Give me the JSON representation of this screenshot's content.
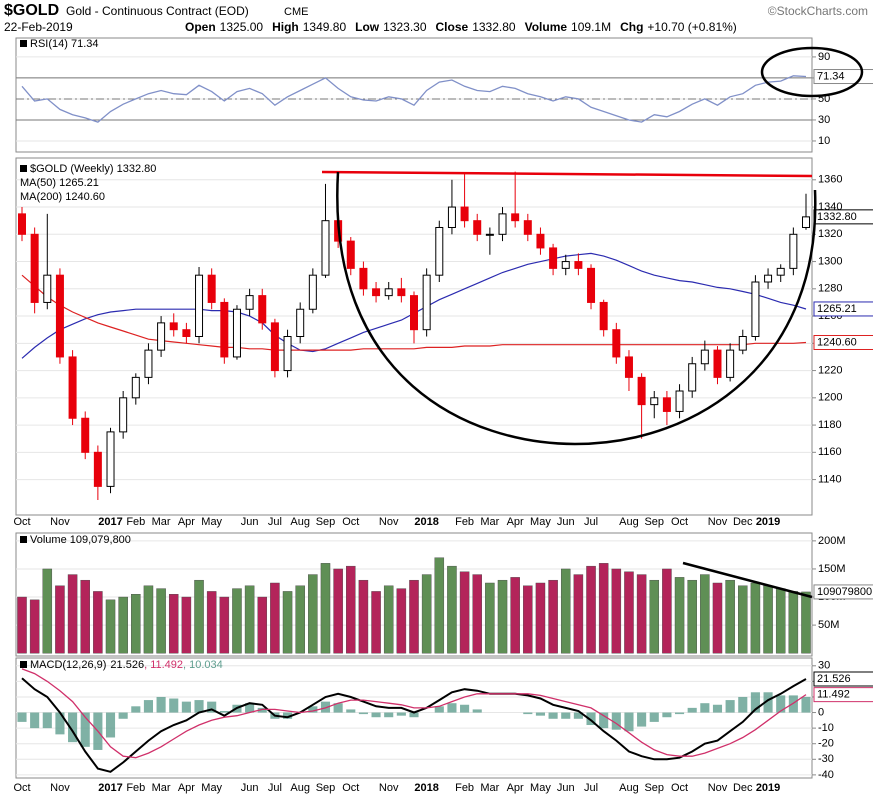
{
  "chart_data": {
    "type": "candlestick",
    "title": "$GOLD",
    "subtitle": "Gold - Continuous Contract (EOD)",
    "exchange": "CME",
    "source": "©StockCharts.com",
    "date": "22-Feb-2019",
    "quote": [
      {
        "label": "Open",
        "value": "1325.00"
      },
      {
        "label": "High",
        "value": "1349.80"
      },
      {
        "label": "Low",
        "value": "1323.30"
      },
      {
        "label": "Close",
        "value": "1332.80"
      },
      {
        "label": "Volume",
        "value": "109.1M"
      },
      {
        "label": "Chg",
        "value": "+10.70 (+0.81%)"
      }
    ],
    "legend": "$GOLD (Weekly) 1332.80",
    "categories": [
      "Oct",
      null,
      null,
      "Nov",
      null,
      null,
      null,
      "2017",
      null,
      "Feb",
      null,
      "Mar",
      null,
      "Apr",
      null,
      "May",
      null,
      null,
      "Jun",
      null,
      "Jul",
      null,
      "Aug",
      null,
      "Sep",
      null,
      "Oct",
      null,
      null,
      "Nov",
      null,
      null,
      "2018",
      null,
      null,
      "Feb",
      null,
      "Mar",
      null,
      "Apr",
      null,
      "May",
      null,
      "Jun",
      null,
      "Jul",
      null,
      null,
      "Aug",
      null,
      "Sep",
      null,
      "Oct",
      null,
      null,
      "Nov",
      null,
      "Dec",
      null,
      "2019",
      null,
      null,
      null
    ],
    "open": [
      1335,
      1320,
      1270,
      1290,
      1230,
      1185,
      1160,
      1135,
      1175,
      1200,
      1215,
      1235,
      1255,
      1250,
      1245,
      1290,
      1270,
      1230,
      1265,
      1275,
      1255,
      1220,
      1245,
      1265,
      1290,
      1330,
      1315,
      1295,
      1280,
      1275,
      1280,
      1275,
      1250,
      1290,
      1325,
      1340,
      1330,
      1320,
      1320,
      1335,
      1330,
      1320,
      1310,
      1295,
      1300,
      1295,
      1270,
      1250,
      1230,
      1215,
      1195,
      1200,
      1190,
      1205,
      1225,
      1235,
      1215,
      1235,
      1245,
      1285,
      1290,
      1295,
      1325
    ],
    "high": [
      1340,
      1325,
      1335,
      1295,
      1235,
      1190,
      1165,
      1178,
      1205,
      1218,
      1240,
      1260,
      1262,
      1255,
      1296,
      1295,
      1273,
      1268,
      1280,
      1280,
      1258,
      1250,
      1270,
      1295,
      1357,
      1335,
      1318,
      1300,
      1285,
      1285,
      1288,
      1278,
      1295,
      1330,
      1360,
      1365,
      1335,
      1325,
      1340,
      1366,
      1335,
      1325,
      1313,
      1305,
      1306,
      1298,
      1272,
      1255,
      1235,
      1218,
      1205,
      1205,
      1210,
      1230,
      1242,
      1238,
      1240,
      1250,
      1290,
      1295,
      1298,
      1325,
      1349.8
    ],
    "low": [
      1315,
      1262,
      1265,
      1225,
      1180,
      1155,
      1125,
      1130,
      1170,
      1195,
      1210,
      1230,
      1245,
      1240,
      1240,
      1265,
      1225,
      1228,
      1260,
      1250,
      1215,
      1215,
      1240,
      1262,
      1288,
      1310,
      1290,
      1275,
      1270,
      1272,
      1270,
      1240,
      1245,
      1285,
      1320,
      1325,
      1315,
      1305,
      1315,
      1325,
      1315,
      1305,
      1290,
      1290,
      1290,
      1265,
      1245,
      1225,
      1205,
      1170,
      1185,
      1180,
      1185,
      1200,
      1220,
      1210,
      1212,
      1232,
      1242,
      1280,
      1285,
      1290,
      1323.3
    ],
    "close": [
      1320,
      1270,
      1290,
      1230,
      1185,
      1160,
      1135,
      1175,
      1200,
      1215,
      1235,
      1255,
      1250,
      1245,
      1290,
      1270,
      1230,
      1265,
      1275,
      1255,
      1220,
      1245,
      1265,
      1290,
      1330,
      1315,
      1295,
      1280,
      1275,
      1280,
      1275,
      1250,
      1290,
      1325,
      1340,
      1330,
      1320,
      1320,
      1335,
      1330,
      1320,
      1310,
      1295,
      1300,
      1295,
      1270,
      1250,
      1230,
      1215,
      1195,
      1200,
      1190,
      1205,
      1225,
      1235,
      1215,
      1235,
      1245,
      1285,
      1290,
      1295,
      1320,
      1332.8
    ],
    "up_color": "#ffffff",
    "down_color": "#e8000b",
    "ylim": [
      1114,
      1376
    ],
    "yticks": [
      1140,
      1160,
      1180,
      1200,
      1220,
      1240,
      1260,
      1280,
      1300,
      1320,
      1340,
      1360
    ],
    "grid": true,
    "last_label": {
      "value": 1332.8,
      "label": "1332.80"
    },
    "series": [
      {
        "name": "MA(50) 1265.21",
        "color": "#2b2bb0",
        "values": [
          1229,
          1237,
          1244,
          1250,
          1254,
          1258,
          1261,
          1263,
          1264,
          1265,
          1265,
          1265,
          1265,
          1265,
          1265,
          1264,
          1264,
          1263,
          1260,
          1255,
          1246,
          1240,
          1235,
          1234,
          1236,
          1240,
          1244,
          1248,
          1251,
          1254,
          1257,
          1262,
          1267,
          1272,
          1276,
          1280,
          1284,
          1288,
          1292,
          1295,
          1298,
          1300,
          1302,
          1304,
          1305,
          1306,
          1304,
          1301,
          1297,
          1293,
          1290,
          1288,
          1286,
          1285,
          1283,
          1281,
          1280,
          1278,
          1276,
          1273,
          1270,
          1268,
          1265.21
        ],
        "last_label": {
          "value": 1265.21,
          "label": "1265.21"
        }
      },
      {
        "name": "MA(200) 1240.60",
        "color": "#dd2222",
        "values": [
          1290,
          1282,
          1274,
          1268,
          1263,
          1259,
          1255,
          1252,
          1249,
          1246,
          1243,
          1242,
          1241,
          1240,
          1239,
          1238,
          1237,
          1237,
          1236,
          1236,
          1235,
          1235,
          1235,
          1235,
          1235,
          1235,
          1235,
          1236,
          1236,
          1236,
          1236,
          1236,
          1237,
          1237,
          1237,
          1238,
          1238,
          1238,
          1239,
          1239,
          1239,
          1239,
          1239,
          1239,
          1239,
          1239,
          1239,
          1239,
          1239,
          1239,
          1239,
          1239,
          1239,
          1239,
          1239,
          1239,
          1239,
          1239,
          1240,
          1240,
          1240,
          1240,
          1240.6
        ],
        "last_label": {
          "value": 1240.6,
          "label": "1240.60"
        }
      }
    ],
    "rsi": {
      "type": "line",
      "name": "RSI(14) 71.34",
      "color": "#8090c8",
      "values": [
        62,
        48,
        50,
        40,
        35,
        32,
        28,
        38,
        45,
        50,
        55,
        58,
        55,
        54,
        63,
        57,
        48,
        57,
        60,
        55,
        44,
        52,
        58,
        64,
        70,
        60,
        52,
        49,
        48,
        52,
        50,
        44,
        58,
        66,
        68,
        62,
        58,
        57,
        62,
        60,
        55,
        52,
        48,
        52,
        50,
        42,
        38,
        34,
        30,
        28,
        35,
        33,
        38,
        45,
        50,
        44,
        52,
        55,
        63,
        66,
        67,
        72,
        71.34
      ],
      "ylim": [
        -0.5,
        108
      ],
      "yticks": [
        10,
        30,
        50,
        70,
        90
      ],
      "grid": true,
      "bands": [
        30,
        70
      ],
      "midline": 50,
      "last_label": 71.34
    },
    "volume": {
      "type": "bar",
      "name": "Volume 109,079,800",
      "values": [
        100,
        95,
        150,
        120,
        140,
        130,
        110,
        95,
        100,
        105,
        120,
        115,
        105,
        100,
        130,
        110,
        100,
        115,
        120,
        100,
        125,
        110,
        120,
        140,
        160,
        150,
        155,
        130,
        110,
        120,
        115,
        130,
        140,
        170,
        155,
        145,
        140,
        125,
        130,
        135,
        120,
        125,
        130,
        150,
        140,
        155,
        160,
        150,
        145,
        140,
        130,
        150,
        135,
        130,
        140,
        125,
        130,
        120,
        125,
        120,
        115,
        110,
        109.0798
      ],
      "up_color": "#5f8f55",
      "down_color": "#b3245a",
      "ylim": [
        -5,
        214
      ],
      "grid": true,
      "yticks": [
        {
          "value": 50,
          "label": "50M"
        },
        {
          "value": 100,
          "label": "100M"
        },
        {
          "value": 150,
          "label": "150M"
        },
        {
          "value": 200,
          "label": "200M"
        }
      ],
      "last_label": {
        "value": 109.0798,
        "label": "109079800"
      }
    },
    "macd": {
      "type": "macd",
      "name": "MACD(12,26,9)",
      "ylim": [
        -42,
        35
      ],
      "yticks": [
        -40,
        -30,
        -20,
        -10,
        0,
        10,
        20,
        30
      ],
      "grid": true,
      "series": [
        {
          "name": "21.526",
          "color": "#000000",
          "kind": "line",
          "values": [
            22,
            15,
            10,
            0,
            -12,
            -25,
            -36,
            -38,
            -32,
            -25,
            -18,
            -12,
            -8,
            -5,
            0,
            2,
            -2,
            3,
            6,
            5,
            -2,
            -3,
            0,
            5,
            10,
            12,
            10,
            7,
            4,
            3,
            3,
            0,
            3,
            8,
            13,
            15,
            14,
            12,
            12,
            12,
            11,
            9,
            5,
            3,
            1,
            -5,
            -12,
            -18,
            -25,
            -28,
            -30,
            -30,
            -29,
            -25,
            -20,
            -18,
            -12,
            -6,
            2,
            8,
            12,
            17,
            21.526
          ],
          "last_label": 21.526
        },
        {
          "name": ", 11.492",
          "color": "#d0306a",
          "kind": "line",
          "values": [
            28,
            25,
            20,
            14,
            7,
            -3,
            -12,
            -22,
            -28,
            -29,
            -26,
            -22,
            -17,
            -12,
            -8,
            -5,
            -3,
            -2,
            0,
            2,
            2,
            1,
            0,
            1,
            3,
            6,
            8,
            8,
            7,
            6,
            5,
            3,
            3,
            4,
            7,
            10,
            12,
            12,
            12,
            12,
            12,
            11,
            9,
            7,
            5,
            3,
            -2,
            -7,
            -13,
            -19,
            -24,
            -27,
            -28,
            -28,
            -26,
            -23,
            -20,
            -16,
            -11,
            -5,
            1,
            6,
            11.492
          ],
          "last_label": 11.492
        },
        {
          "name": ", 10.034",
          "color": "#5f9e8f",
          "kind": "bar",
          "values": [
            -6,
            -10,
            -10,
            -14,
            -19,
            -22,
            -24,
            -16,
            -4,
            4,
            8,
            10,
            9,
            7,
            8,
            7,
            1,
            5,
            6,
            3,
            -4,
            -4,
            0,
            4,
            7,
            6,
            2,
            -1,
            -3,
            -3,
            -2,
            -3,
            0,
            4,
            6,
            5,
            2,
            0,
            0,
            0,
            -1,
            -2,
            -4,
            -4,
            -4,
            -8,
            -10,
            -11,
            -12,
            -9,
            -6,
            -3,
            -1,
            3,
            6,
            5,
            8,
            10,
            13,
            13,
            11,
            11,
            10.034
          ]
        }
      ]
    }
  }
}
